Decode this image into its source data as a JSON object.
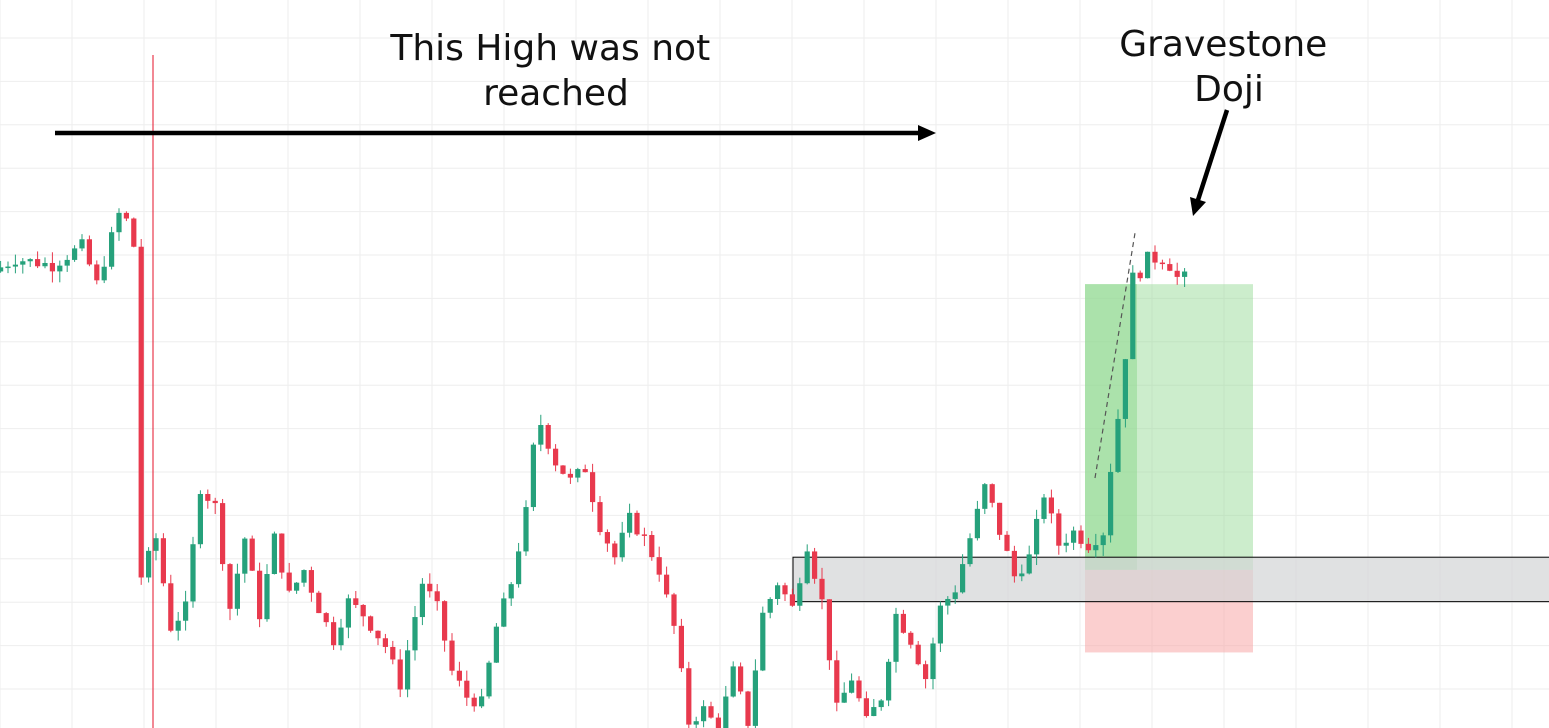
{
  "annotations": {
    "high_label": [
      "This High was not",
      "reached"
    ],
    "doji_label": [
      "Gravestone",
      "Doji"
    ]
  },
  "colors": {
    "up": "#26a17b",
    "down": "#e8394d",
    "grid": "#eeeeee",
    "arrow": "#000000",
    "zone_fill": "#d3d4d6",
    "zone_border": "#000000",
    "profit_fill": "#8fd88f",
    "loss_fill": "#f7a8a8"
  },
  "chart_data": {
    "type": "candlestick",
    "ylim": [
      0,
      100
    ],
    "x_count": 200,
    "grid": true,
    "anchors": [
      [
        0,
        73
      ],
      [
        3,
        75
      ],
      [
        8,
        74
      ],
      [
        12,
        77
      ],
      [
        14,
        71
      ],
      [
        17,
        82
      ],
      [
        18,
        81
      ],
      [
        19,
        77
      ],
      [
        20,
        25
      ],
      [
        22,
        31
      ],
      [
        24,
        17
      ],
      [
        26,
        20
      ],
      [
        28,
        39
      ],
      [
        30,
        36
      ],
      [
        32,
        20
      ],
      [
        34,
        31
      ],
      [
        36,
        19
      ],
      [
        38,
        31
      ],
      [
        40,
        22
      ],
      [
        42,
        26
      ],
      [
        44,
        20
      ],
      [
        46,
        15
      ],
      [
        48,
        21
      ],
      [
        50,
        19
      ],
      [
        53,
        14
      ],
      [
        55,
        8
      ],
      [
        58,
        24
      ],
      [
        60,
        20
      ],
      [
        62,
        10
      ],
      [
        64,
        6
      ],
      [
        66,
        5
      ],
      [
        68,
        17
      ],
      [
        70,
        24
      ],
      [
        72,
        35
      ],
      [
        73,
        45
      ],
      [
        74,
        49
      ],
      [
        75,
        46
      ],
      [
        76,
        43
      ],
      [
        78,
        40
      ],
      [
        80,
        42
      ],
      [
        82,
        33
      ],
      [
        84,
        28
      ],
      [
        86,
        34
      ],
      [
        88,
        31
      ],
      [
        90,
        26
      ],
      [
        92,
        17
      ],
      [
        94,
        2
      ],
      [
        96,
        4
      ],
      [
        98,
        1
      ],
      [
        100,
        10
      ],
      [
        102,
        2
      ],
      [
        104,
        19
      ],
      [
        106,
        24
      ],
      [
        108,
        20
      ],
      [
        110,
        30
      ],
      [
        112,
        21
      ],
      [
        114,
        4
      ],
      [
        116,
        9
      ],
      [
        118,
        2
      ],
      [
        120,
        6
      ],
      [
        122,
        19
      ],
      [
        124,
        15
      ],
      [
        126,
        9
      ],
      [
        128,
        20
      ],
      [
        130,
        23
      ],
      [
        132,
        31
      ],
      [
        134,
        39
      ],
      [
        135,
        36
      ],
      [
        136,
        32
      ],
      [
        138,
        25
      ],
      [
        140,
        28
      ],
      [
        142,
        38
      ],
      [
        144,
        30
      ],
      [
        146,
        32
      ],
      [
        148,
        30
      ],
      [
        150,
        32
      ],
      [
        151,
        42
      ],
      [
        152,
        50
      ],
      [
        153,
        60
      ],
      [
        154,
        72
      ],
      [
        155,
        73
      ],
      [
        156,
        75
      ],
      [
        158,
        75
      ],
      [
        159,
        74
      ],
      [
        160,
        72
      ]
    ],
    "resistance_level": 77,
    "support_zone": [
      21,
      28
    ],
    "position": {
      "entry": 26,
      "target": 71,
      "stop": 13
    }
  }
}
